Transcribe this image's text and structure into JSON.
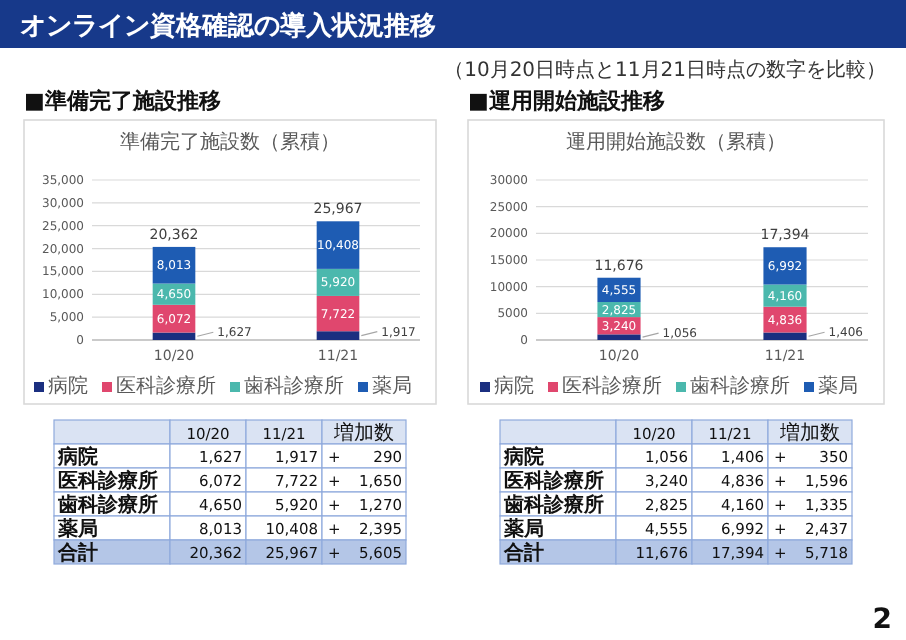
{
  "chart_data": [
    {
      "type": "bar",
      "stacked": true,
      "title": "準備完了施設数（累積）",
      "categories": [
        "10/20",
        "11/21"
      ],
      "series": [
        {
          "name": "病院",
          "color": "#1b2f80",
          "values": [
            1627,
            1917
          ],
          "value_labels": [
            "1,627",
            "1,917"
          ]
        },
        {
          "name": "医科診療所",
          "color": "#e0476e",
          "values": [
            6072,
            7722
          ],
          "value_labels": [
            "6,072",
            "7,722"
          ]
        },
        {
          "name": "歯科診療所",
          "color": "#4bb8ad",
          "values": [
            4650,
            5920
          ],
          "value_labels": [
            "4,650",
            "5,920"
          ]
        },
        {
          "name": "薬局",
          "color": "#1e5cb3",
          "values": [
            8013,
            10408
          ],
          "value_labels": [
            "8,013",
            "10,408"
          ]
        }
      ],
      "ylim": [
        0,
        35000
      ],
      "yticks": [
        0,
        {
          "value": 5000,
          "label": "5,000"
        },
        {
          "value": 10000,
          "label": "10,000"
        },
        {
          "value": 15000,
          "label": "15,000"
        },
        {
          "value": 20000,
          "label": "20,000"
        },
        {
          "value": 25000,
          "label": "25,000"
        },
        {
          "value": 30000,
          "label": "30,000"
        },
        {
          "value": 35000,
          "label": "35,000"
        }
      ],
      "grid": "y",
      "legend": "bottom",
      "totals": [
        "20,362",
        "25,967"
      ],
      "annotations": [
        "オンライン資格確認の導入状況推移",
        "（10月20日時点と11月21日時点の数字を比較）",
        "■準備完了施設推移",
        "合計",
        "増加数",
        "+ 290",
        "+ 1,650",
        "+ 1,270",
        "+ 2,395",
        "+ 5,605",
        "2"
      ]
    },
    {
      "type": "bar",
      "stacked": true,
      "title": "運用開始施設数（累積）",
      "categories": [
        "10/20",
        "11/21"
      ],
      "series": [
        {
          "name": "病院",
          "color": "#1b2f80",
          "values": [
            1056,
            1406
          ],
          "value_labels": [
            "1,056",
            "1,406"
          ]
        },
        {
          "name": "医科診療所",
          "color": "#e0476e",
          "values": [
            3240,
            4836
          ],
          "value_labels": [
            "3,240",
            "4,836"
          ]
        },
        {
          "name": "歯科診療所",
          "color": "#4bb8ad",
          "values": [
            2825,
            4160
          ],
          "value_labels": [
            "2,825",
            "4,160"
          ]
        },
        {
          "name": "薬局",
          "color": "#1e5cb3",
          "values": [
            4555,
            6992
          ],
          "value_labels": [
            "4,555",
            "6,992"
          ]
        }
      ],
      "ylim": [
        0,
        30000
      ],
      "yticks": [
        0,
        5000,
        10000,
        15000,
        20000,
        25000,
        30000
      ],
      "grid": "y",
      "legend": "bottom",
      "totals": [
        "11,676",
        "17,394"
      ],
      "annotations": [
        "■運用開始施設推移",
        "合計",
        "増加数",
        "+ 350",
        "+ 1,596",
        "+ 1,335",
        "+ 2,437",
        "+ 5,718"
      ]
    }
  ]
}
